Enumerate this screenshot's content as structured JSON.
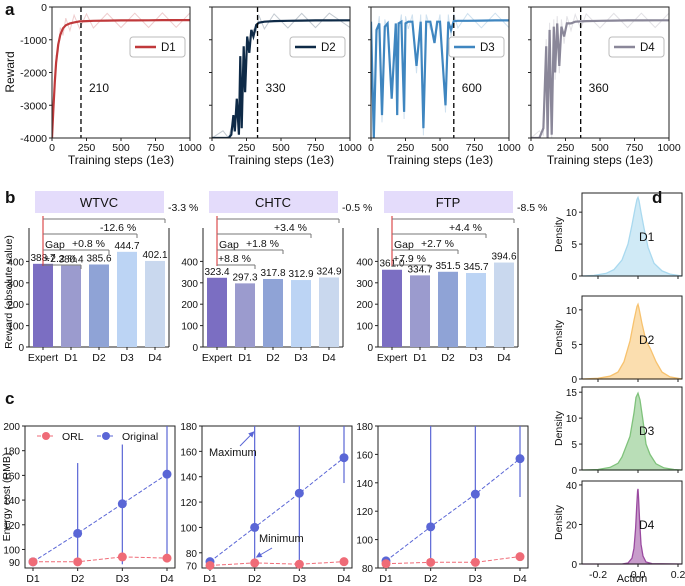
{
  "panel_letters": [
    "a",
    "b",
    "c",
    "d"
  ],
  "colors": {
    "D1": "#c0393b",
    "D2": "#0e2a47",
    "D3": "#3f86c0",
    "D4": "#8a8799",
    "bar_expert": "#7b6ec2",
    "bar_d1": "#9b9bce",
    "bar_d2": "#8fa3d6",
    "bar_d3": "#bcd4f4",
    "bar_d4": "#c9d8ee",
    "header_bg": "#e4dcfb",
    "orl": "#ef6b77",
    "original": "#5a66d6",
    "density_D1": "#a9d9ef",
    "density_D2": "#f7c26e",
    "density_D3": "#7fc27b",
    "density_D4": "#9a4aa0",
    "gap_line": "#d62728"
  },
  "chart_data": [
    {
      "panel": "a",
      "type": "line",
      "ylabel": "Reward",
      "xlabel": "Training steps (1e3)",
      "xlim": [
        0,
        1000
      ],
      "ylim": [
        -4000,
        0
      ],
      "xticks": [
        "0",
        "250",
        "500",
        "750",
        "1000"
      ],
      "yticks": [
        "0",
        "-1000",
        "-2000",
        "-3000",
        "-4000"
      ],
      "series": [
        {
          "name": "D1",
          "converge_step": 210,
          "converge_label": "210",
          "x": [
            0,
            10,
            20,
            30,
            45,
            60,
            80,
            100,
            130,
            160,
            200,
            250,
            300,
            400,
            500,
            600,
            700,
            800,
            900,
            1000
          ],
          "y": [
            -4000,
            -3100,
            -2300,
            -1700,
            -1150,
            -850,
            -650,
            -560,
            -500,
            -470,
            -440,
            -430,
            -420,
            -415,
            -410,
            -410,
            -405,
            -400,
            -400,
            -400
          ]
        },
        {
          "name": "D2",
          "converge_step": 330,
          "converge_label": "330",
          "x": [
            0,
            80,
            120,
            140,
            155,
            165,
            180,
            195,
            205,
            215,
            230,
            240,
            255,
            270,
            285,
            300,
            320,
            340,
            380,
            450,
            550,
            650,
            750,
            850,
            1000
          ],
          "y": [
            -4000,
            -4000,
            -4000,
            -3900,
            -3300,
            -3800,
            -2800,
            -3900,
            -1500,
            -3700,
            -1200,
            -2600,
            -900,
            -1400,
            -700,
            -900,
            -550,
            -480,
            -450,
            -430,
            -420,
            -415,
            -410,
            -410,
            -405
          ]
        },
        {
          "name": "D3",
          "converge_step": 600,
          "converge_label": "600",
          "x": [
            0,
            20,
            40,
            60,
            80,
            100,
            120,
            150,
            180,
            190,
            200,
            220,
            240,
            250,
            270,
            300,
            330,
            360,
            380,
            400,
            430,
            460,
            480,
            500,
            540,
            560,
            580,
            600,
            630,
            700,
            800,
            900,
            1000
          ],
          "y": [
            -450,
            -4000,
            -700,
            -500,
            -3300,
            -600,
            -500,
            -2800,
            -500,
            -3300,
            -500,
            -450,
            -3200,
            -500,
            -450,
            -450,
            -1800,
            -450,
            -3700,
            -450,
            -450,
            -1100,
            -450,
            -450,
            -3000,
            -450,
            -700,
            -430,
            -420,
            -420,
            -415,
            -410,
            -410
          ]
        },
        {
          "name": "D4",
          "converge_step": 360,
          "converge_label": "360",
          "x": [
            0,
            60,
            90,
            110,
            120,
            135,
            150,
            165,
            175,
            190,
            205,
            220,
            240,
            260,
            290,
            320,
            360,
            400,
            500,
            600,
            700,
            800,
            900,
            1000
          ],
          "y": [
            -4000,
            -4000,
            -3700,
            -1200,
            -4000,
            -700,
            -3900,
            -600,
            -2000,
            -500,
            -1800,
            -600,
            -900,
            -500,
            -500,
            -450,
            -440,
            -430,
            -420,
            -415,
            -410,
            -410,
            -405,
            -405
          ]
        }
      ]
    },
    {
      "panel": "b",
      "type": "bar",
      "ylabel": "Reward (absolute value)",
      "ylim": [
        0,
        500
      ],
      "yticks": [
        "0",
        "100",
        "200",
        "300",
        "400"
      ],
      "categories": [
        "Expert",
        "D1",
        "D2",
        "D3",
        "D4"
      ],
      "groups": [
        {
          "title": "WTVC",
          "values": [
            388.7,
            380.4,
            385.6,
            444.7,
            402.1
          ],
          "value_labels": [
            "388.7",
            "380.4",
            "385.6",
            "444.7",
            "402.1"
          ],
          "gaps": [
            "+2.2 %",
            "+0.8 %",
            "-12.6 %",
            "-3.3 %"
          ],
          "gap_label": "Gap"
        },
        {
          "title": "CHTC",
          "values": [
            323.4,
            297.3,
            317.8,
            312.9,
            324.9
          ],
          "value_labels": [
            "323.4",
            "297.3",
            "317.8",
            "312.9",
            "324.9"
          ],
          "gaps": [
            "+8.8 %",
            "+1.8 %",
            "+3.4 %",
            "-0.5 %"
          ],
          "gap_label": "Gap"
        },
        {
          "title": "FTP",
          "values": [
            361.0,
            334.7,
            351.5,
            345.7,
            394.6
          ],
          "value_labels": [
            "361.0",
            "334.7",
            "351.5",
            "345.7",
            "394.6"
          ],
          "gaps": [
            "+7.9 %",
            "+2.7 %",
            "+4.4 %",
            "-8.5 %"
          ],
          "gap_label": "Gap"
        }
      ]
    },
    {
      "panel": "c",
      "type": "line",
      "ylabel": "Energy cost (RMB)",
      "categories": [
        "D1",
        "D2",
        "D3",
        "D4"
      ],
      "legend": [
        "ORL",
        "Original"
      ],
      "annotations": [
        "Maximum",
        "Minimum"
      ],
      "subplots": [
        {
          "ylim": [
            85,
            200
          ],
          "yticks": [
            "100",
            "120",
            "140",
            "160",
            "180",
            "200"
          ],
          "yminor": "90",
          "ORL": [
            90,
            90,
            94,
            93
          ],
          "ORL_err": [
            [
              88,
              92
            ],
            [
              88,
              92
            ],
            [
              91,
              97
            ],
            [
              91,
              95
            ]
          ],
          "Original": [
            90,
            113,
            137,
            161
          ],
          "Original_err": [
            [
              87,
              93
            ],
            [
              87,
              170
            ],
            [
              88,
              185
            ],
            [
              90,
              200
            ]
          ]
        },
        {
          "ylim": [
            68,
            180
          ],
          "yticks": [
            "80",
            "100",
            "120",
            "140",
            "160",
            "180"
          ],
          "yminor": "70",
          "ORL": [
            70,
            72,
            71,
            73
          ],
          "ORL_err": [
            [
              69,
              71
            ],
            [
              70,
              74
            ],
            [
              70,
              72
            ],
            [
              71,
              75
            ]
          ],
          "Original": [
            73,
            100,
            127,
            155
          ],
          "Original_err": [
            [
              71,
              75
            ],
            [
              71,
              180
            ],
            [
              72,
              180
            ],
            [
              135,
              180
            ]
          ]
        },
        {
          "ylim": [
            80,
            180
          ],
          "yticks": [
            "80",
            "100",
            "120",
            "140",
            "160",
            "180"
          ],
          "ORL": [
            83,
            84,
            84,
            88
          ],
          "ORL_err": [
            [
              82,
              84
            ],
            [
              83,
              85
            ],
            [
              83,
              85
            ],
            [
              86,
              90
            ]
          ],
          "Original": [
            85,
            109,
            132,
            157
          ],
          "Original_err": [
            [
              83,
              87
            ],
            [
              85,
              180
            ],
            [
              86,
              180
            ],
            [
              130,
              180
            ]
          ]
        }
      ]
    },
    {
      "panel": "d",
      "type": "area",
      "ylabel": "Density",
      "xlabel": "Action",
      "xlim": [
        -0.28,
        0.22
      ],
      "xticks": [
        "-0.2",
        "0.0",
        "0.2"
      ],
      "series": [
        {
          "name": "D1",
          "ylim": [
            0,
            13
          ],
          "yticks": [
            "0",
            "5",
            "10"
          ],
          "x": [
            -0.28,
            -0.22,
            -0.16,
            -0.12,
            -0.08,
            -0.05,
            -0.03,
            -0.015,
            -0.005,
            0,
            0.005,
            0.015,
            0.03,
            0.05,
            0.08,
            0.12,
            0.16,
            0.22
          ],
          "density": [
            0,
            0.1,
            0.4,
            1.0,
            2.5,
            5.0,
            8.0,
            10.5,
            12.0,
            12.3,
            11.8,
            10.0,
            7.5,
            4.5,
            2.0,
            0.8,
            0.3,
            0
          ]
        },
        {
          "name": "D2",
          "ylim": [
            0,
            12
          ],
          "yticks": [
            "0",
            "5",
            "10"
          ],
          "x": [
            -0.28,
            -0.2,
            -0.14,
            -0.1,
            -0.07,
            -0.04,
            -0.02,
            -0.005,
            0,
            0.005,
            0.02,
            0.04,
            0.06,
            0.09,
            0.12,
            0.16,
            0.22
          ],
          "density": [
            0,
            0.1,
            0.4,
            1.0,
            2.5,
            5.5,
            8.5,
            10.5,
            10.8,
            10.2,
            8.0,
            5.5,
            4.5,
            2.5,
            1.0,
            0.3,
            0
          ]
        },
        {
          "name": "D3",
          "ylim": [
            0,
            16
          ],
          "yticks": [
            "0",
            "5",
            "10",
            "15"
          ],
          "x": [
            -0.28,
            -0.2,
            -0.14,
            -0.1,
            -0.08,
            -0.06,
            -0.04,
            -0.02,
            -0.01,
            0,
            0.01,
            0.025,
            0.04,
            0.06,
            0.09,
            0.13,
            0.18,
            0.22
          ],
          "density": [
            0,
            0.1,
            0.5,
            1.3,
            2.5,
            4.5,
            6.5,
            11.0,
            14.0,
            14.8,
            13.5,
            9.5,
            5.0,
            3.0,
            1.2,
            0.4,
            0.1,
            0
          ]
        },
        {
          "name": "D4",
          "ylim": [
            0,
            42
          ],
          "yticks": [
            "0",
            "20",
            "40"
          ],
          "x": [
            -0.28,
            -0.08,
            -0.05,
            -0.03,
            -0.02,
            -0.012,
            -0.006,
            -0.002,
            0,
            0.003,
            0.008,
            0.015,
            0.025,
            0.04,
            0.07,
            0.22
          ],
          "density": [
            0,
            0,
            0.5,
            3.0,
            8.0,
            18.0,
            30.0,
            37.0,
            38.0,
            33.0,
            22.0,
            10.0,
            4.0,
            1.0,
            0.2,
            0
          ]
        }
      ]
    }
  ]
}
